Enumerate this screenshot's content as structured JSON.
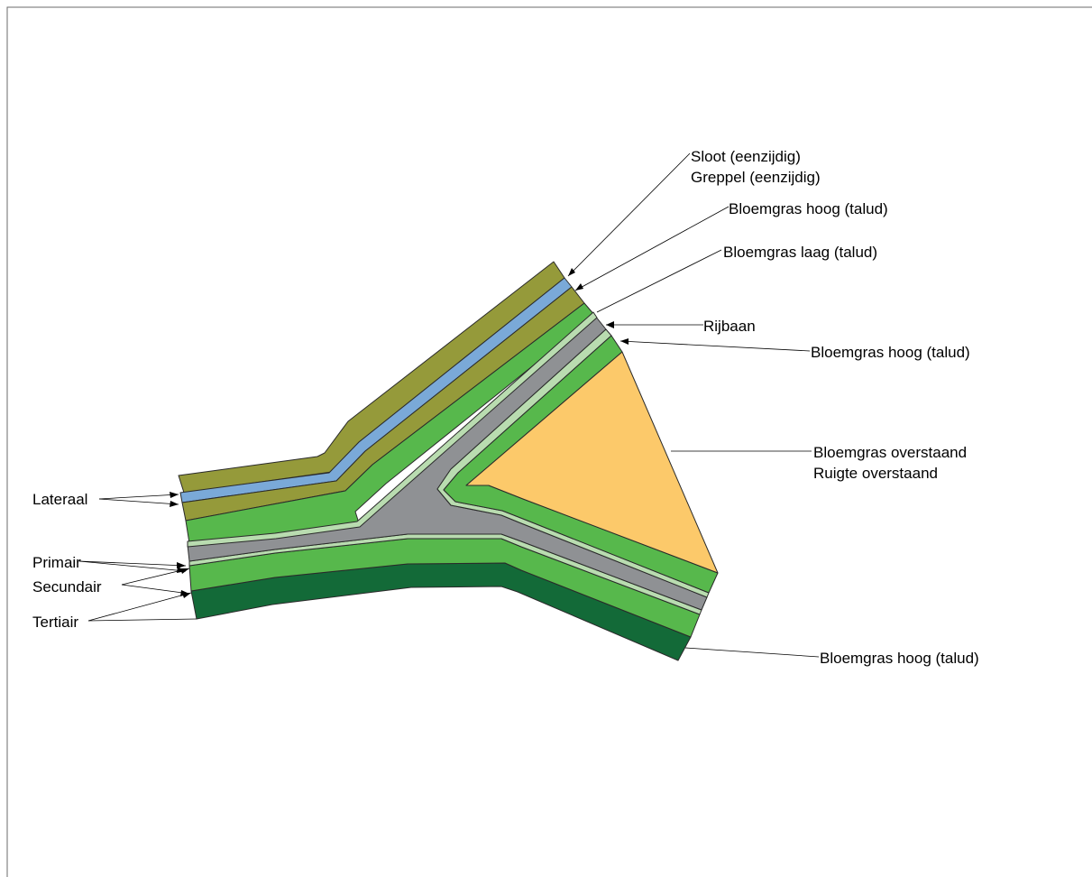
{
  "colors": {
    "olive": "#959a3a",
    "water": "#7aa9d8",
    "green": "#57b84c",
    "light_green": "#b9dcb0",
    "gray": "#8f9194",
    "dark_green": "#136a38",
    "orange": "#fcc96a",
    "outline": "#2a2a2a",
    "background": "#ffffff"
  },
  "labels": {
    "sloot": "Sloot (eenzijdig)",
    "greppel": "Greppel (eenzijdig)",
    "bloemgras_hoog_1": "Bloemgras hoog (talud)",
    "bloemgras_laag": "Bloemgras laag (talud)",
    "rijbaan": "Rijbaan",
    "bloemgras_hoog_2": "Bloemgras hoog (talud)",
    "bloemgras_overstaand": "Bloemgras overstaand",
    "ruigte_overstaand": "Ruigte overstaand",
    "lateraal": "Lateraal",
    "primair": "Primair",
    "secundair": "Secundair",
    "tertiair": "Tertiair",
    "bloemgras_hoog_3": "Bloemgras hoog (talud)"
  }
}
